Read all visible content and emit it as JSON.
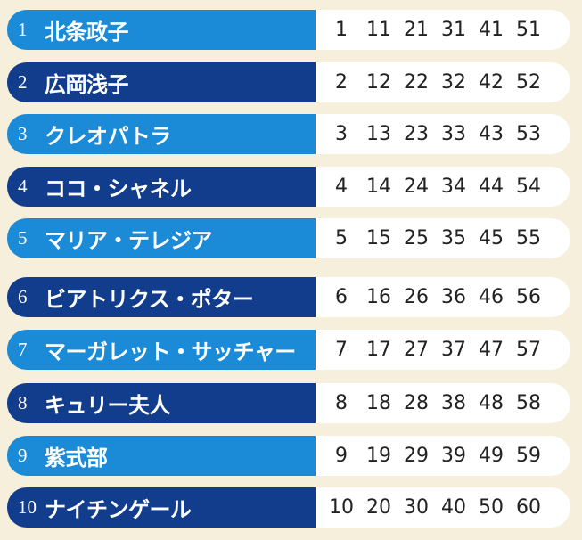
{
  "rows": [
    {
      "rank": "1",
      "name": "北条政子",
      "numbers": [
        1,
        11,
        21,
        31,
        41,
        51
      ]
    },
    {
      "rank": "2",
      "name": "広岡浅子",
      "numbers": [
        2,
        12,
        22,
        32,
        42,
        52
      ]
    },
    {
      "rank": "3",
      "name": "クレオパトラ",
      "numbers": [
        3,
        13,
        23,
        33,
        43,
        53
      ]
    },
    {
      "rank": "4",
      "name": "ココ・シャネル",
      "numbers": [
        4,
        14,
        24,
        34,
        44,
        54
      ]
    },
    {
      "rank": "5",
      "name": "マリア・テレジア",
      "numbers": [
        5,
        15,
        25,
        35,
        45,
        55
      ]
    },
    {
      "rank": "6",
      "name": "ビアトリクス・ポター",
      "numbers": [
        6,
        16,
        26,
        36,
        46,
        56
      ]
    },
    {
      "rank": "7",
      "name": "マーガレット・サッチャー",
      "numbers": [
        7,
        17,
        27,
        37,
        47,
        57
      ]
    },
    {
      "rank": "8",
      "name": "キュリー夫人",
      "numbers": [
        8,
        18,
        28,
        38,
        48,
        58
      ]
    },
    {
      "rank": "9",
      "name": "紫式部",
      "numbers": [
        9,
        19,
        29,
        39,
        49,
        59
      ]
    },
    {
      "rank": "10",
      "name": "ナイチンゲール",
      "numbers": [
        10,
        20,
        30,
        40,
        50,
        60
      ]
    }
  ]
}
